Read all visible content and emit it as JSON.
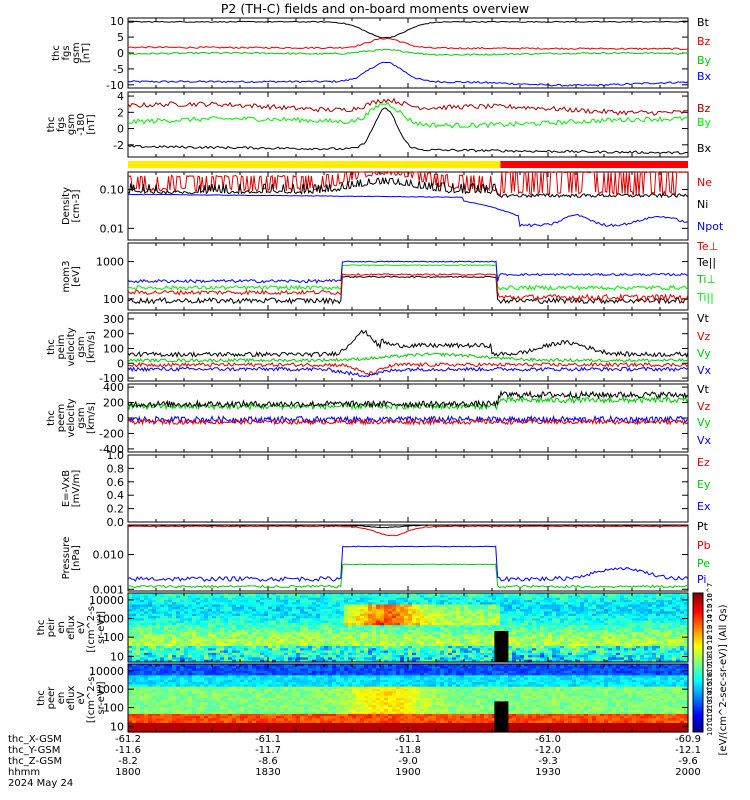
{
  "title": "P2 (TH-C) fields and on-board moments overview",
  "colors": {
    "black": "#000000",
    "red": "#e00000",
    "green": "#00cc00",
    "blue": "#0000ff",
    "darkred": "#a00000",
    "lightgreen": "#00ee00",
    "yellow": "#ffee00",
    "brightred": "#ff0000"
  },
  "time_axis": {
    "ticks": [
      "1800",
      "1830",
      "1900",
      "1930",
      "2000"
    ],
    "rows": [
      {
        "label": "thc_X-GSM",
        "values": [
          "-61.2",
          "-61.1",
          "-61.1",
          "-61.0",
          "-60.9"
        ]
      },
      {
        "label": "thc_Y-GSM",
        "values": [
          "-11.6",
          "-11.7",
          "-11.8",
          "-12.0",
          "-12.1"
        ]
      },
      {
        "label": "thc_Z-GSM",
        "values": [
          "-8.2",
          "-8.6",
          "-9.0",
          "-9.3",
          "-9.6"
        ]
      },
      {
        "label": "hhmm",
        "values": [
          "1800",
          "1830",
          "1900",
          "1930",
          "2000"
        ]
      }
    ],
    "date": "2024 May 24"
  },
  "colorbar": {
    "label": "[eV/(cm^2-sec-sr-eV)] (All Qs)",
    "upper_ticks": [
      "10^7",
      "10^6",
      "10^5",
      "10^4",
      "10^3",
      "10^2",
      "10^1"
    ],
    "lower_ticks": [
      "10^8",
      "10^7",
      "10^6",
      "10^5",
      "10^4",
      "10^3",
      "10^2",
      "10^1"
    ]
  },
  "chart_data": [
    {
      "type": "line",
      "ylabel": [
        "thc",
        "fgs",
        "gsm",
        "[nT]"
      ],
      "yticks": [
        "10",
        "5",
        "0",
        "-5",
        "-10"
      ],
      "ylim": [
        -11,
        11
      ],
      "series": [
        {
          "name": "Bt",
          "color": "#000000"
        },
        {
          "name": "Bz",
          "color": "#e00000"
        },
        {
          "name": "By",
          "color": "#00cc00"
        },
        {
          "name": "Bx",
          "color": "#0000ff"
        }
      ]
    },
    {
      "type": "line",
      "ylabel": [
        "thc",
        "fgs",
        "gsm",
        "-180",
        "[nT]"
      ],
      "yticks": [
        "4",
        "2",
        "0",
        "-2"
      ],
      "ylim": [
        -3.5,
        4.5
      ],
      "series": [
        {
          "name": "Bz",
          "color": "#a00000"
        },
        {
          "name": "By",
          "color": "#00ee00"
        },
        {
          "name": "Bx",
          "color": "#000000"
        }
      ]
    },
    {
      "type": "line",
      "ylabel": [
        "Density",
        "[cm-3]"
      ],
      "yticks": [
        "0.10",
        "0.01"
      ],
      "ylog": true,
      "series": [
        {
          "name": "Ne",
          "color": "#e00000"
        },
        {
          "name": "Ni",
          "color": "#000000"
        },
        {
          "name": "Npot",
          "color": "#0000ff"
        }
      ]
    },
    {
      "type": "line",
      "ylabel": [
        "mom3",
        "[eV]"
      ],
      "yticks": [
        "1000",
        "100"
      ],
      "ylog": true,
      "series": [
        {
          "name": "Te⊥",
          "color": "#e00000"
        },
        {
          "name": "Te||",
          "color": "#000000"
        },
        {
          "name": "Ti⊥",
          "color": "#00cc00"
        },
        {
          "name": "Ti||",
          "color": "#00ee00"
        }
      ]
    },
    {
      "type": "line",
      "ylabel": [
        "thc",
        "peim",
        "velocity",
        "gsm",
        "[km/s]"
      ],
      "yticks": [
        "300",
        "200",
        "100",
        "0",
        "-100"
      ],
      "ylim": [
        -120,
        340
      ],
      "series": [
        {
          "name": "Vt",
          "color": "#000000"
        },
        {
          "name": "Vz",
          "color": "#e00000"
        },
        {
          "name": "Vy",
          "color": "#00cc00"
        },
        {
          "name": "Vx",
          "color": "#0000ff"
        }
      ]
    },
    {
      "type": "line",
      "ylabel": [
        "thc",
        "peem",
        "velocity",
        "gsm",
        "[km/s]"
      ],
      "yticks": [
        "400",
        "200",
        "0",
        "-200",
        "-400"
      ],
      "ylim": [
        -440,
        440
      ],
      "series": [
        {
          "name": "Vt",
          "color": "#000000"
        },
        {
          "name": "Vz",
          "color": "#e00000"
        },
        {
          "name": "Vy",
          "color": "#00cc00"
        },
        {
          "name": "Vx",
          "color": "#0000ff"
        }
      ]
    },
    {
      "type": "line",
      "ylabel": [
        "E=-VxB",
        "[mV/m]"
      ],
      "yticks": [
        "1.0",
        "0.8",
        "0.6",
        "0.4",
        "0.2",
        "0.0"
      ],
      "ylim": [
        0,
        1
      ],
      "series": [
        {
          "name": "Ez",
          "color": "#e00000"
        },
        {
          "name": "Ey",
          "color": "#00cc00"
        },
        {
          "name": "Ex",
          "color": "#0000ff"
        }
      ]
    },
    {
      "type": "line",
      "ylabel": [
        "Pressure",
        "[nPa]"
      ],
      "yticks": [
        "0.010",
        "0.001"
      ],
      "ylog": true,
      "series": [
        {
          "name": "Pt",
          "color": "#000000"
        },
        {
          "name": "Pb",
          "color": "#e00000"
        },
        {
          "name": "Pe",
          "color": "#00cc00"
        },
        {
          "name": "Pi",
          "color": "#0000ff"
        }
      ]
    },
    {
      "type": "heatmap",
      "ylabel": [
        "thc",
        "peir",
        "en",
        "eflux",
        "eV",
        "[(cm^2-s-",
        "sr-eV)]"
      ],
      "yticks": [
        "10000",
        "1000",
        "100",
        "10"
      ]
    },
    {
      "type": "heatmap",
      "ylabel": [
        "thc",
        "peer",
        "en",
        "eflux",
        "eV",
        "[(cm^2-s-",
        "sr-eV)]"
      ],
      "yticks": [
        "10000",
        "1000",
        "100",
        "10"
      ]
    }
  ]
}
